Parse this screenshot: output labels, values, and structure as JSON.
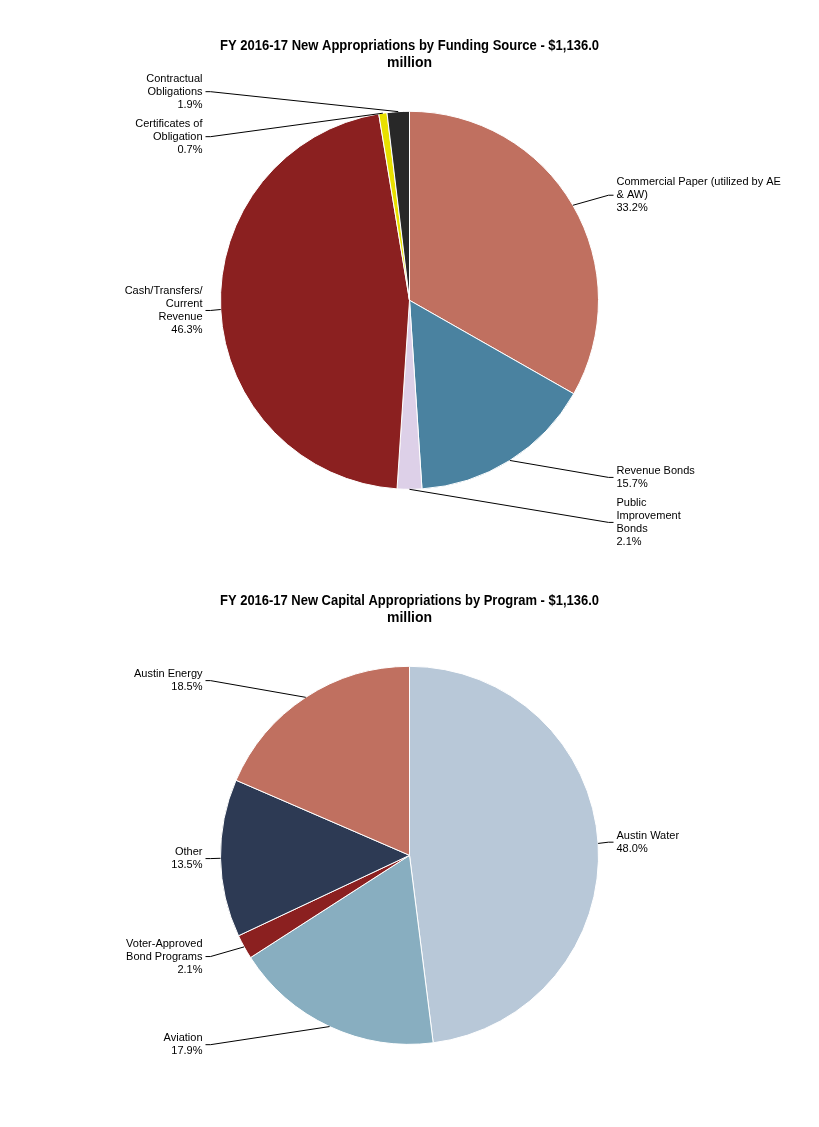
{
  "chart_data": [
    {
      "type": "pie",
      "title": "FY 2016-17 New Appropriations by Funding Source - $1,136.0\nmillion",
      "categories": [
        "Commercial Paper (utilized by AE\n& AW)",
        "Revenue Bonds",
        "Public\nImprovement\nBonds",
        "Cash/Transfers/\nCurrent\nRevenue",
        "Certificates of\nObligation",
        "Contractual\nObligations"
      ],
      "values": [
        33.2,
        15.7,
        2.1,
        46.3,
        0.7,
        1.9
      ],
      "value_labels": [
        "33.2%",
        "15.7%",
        "2.1%",
        "46.3%",
        "0.7%",
        "1.9%"
      ],
      "data_labels": true,
      "colors": [
        "#C07060",
        "#4A82A0",
        "#DDD0E8",
        "#8B2020",
        "#E8E000",
        "#282828"
      ]
    },
    {
      "type": "pie",
      "title": "FY 2016-17 New Capital Appropriations by Program - $1,136.0\nmillion",
      "categories": [
        "Austin Water",
        "Aviation",
        "Voter-Approved\nBond Programs",
        "Other",
        "Austin Energy"
      ],
      "values": [
        48.0,
        17.9,
        2.1,
        13.5,
        18.5
      ],
      "value_labels": [
        "48.0%",
        "17.9%",
        "2.1%",
        "13.5%",
        "18.5%"
      ],
      "data_labels": true,
      "colors": [
        "#B8C8D8",
        "#88AEC0",
        "#8B2020",
        "#2D3A54",
        "#C07060"
      ]
    }
  ]
}
